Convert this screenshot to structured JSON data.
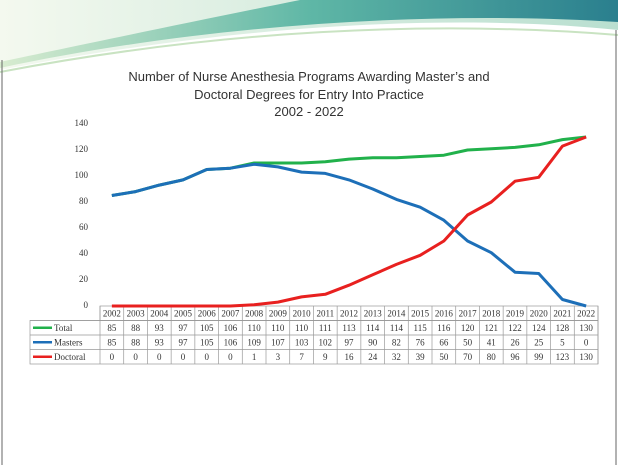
{
  "chart_data": {
    "type": "line",
    "title": "Number of Nurse Anesthesia Programs Awarding Master’s and Doctoral Degrees for Entry Into Practice",
    "subtitle": "2002 - 2022",
    "categories": [
      "2002",
      "2003",
      "2004",
      "2005",
      "2006",
      "2007",
      "2008",
      "2009",
      "2010",
      "2011",
      "2012",
      "2013",
      "2014",
      "2015",
      "2016",
      "2017",
      "2018",
      "2019",
      "2020",
      "2021",
      "2022"
    ],
    "series": [
      {
        "name": "Total",
        "color": "#21b14b",
        "values": [
          85,
          88,
          93,
          97,
          105,
          106,
          110,
          110,
          110,
          111,
          113,
          114,
          114,
          115,
          116,
          120,
          121,
          122,
          124,
          128,
          130
        ]
      },
      {
        "name": "Masters",
        "color": "#1d6fb8",
        "values": [
          85,
          88,
          93,
          97,
          105,
          106,
          109,
          107,
          103,
          102,
          97,
          90,
          82,
          76,
          66,
          50,
          41,
          26,
          25,
          5,
          0
        ]
      },
      {
        "name": "Doctoral",
        "color": "#e8201f",
        "values": [
          0,
          0,
          0,
          0,
          0,
          0,
          1,
          3,
          7,
          9,
          16,
          24,
          32,
          39,
          50,
          70,
          80,
          96,
          99,
          123,
          130
        ]
      }
    ],
    "ylim": [
      0,
      140
    ],
    "yticks": [
      0,
      20,
      40,
      60,
      80,
      100,
      120,
      140
    ],
    "grid": false
  }
}
